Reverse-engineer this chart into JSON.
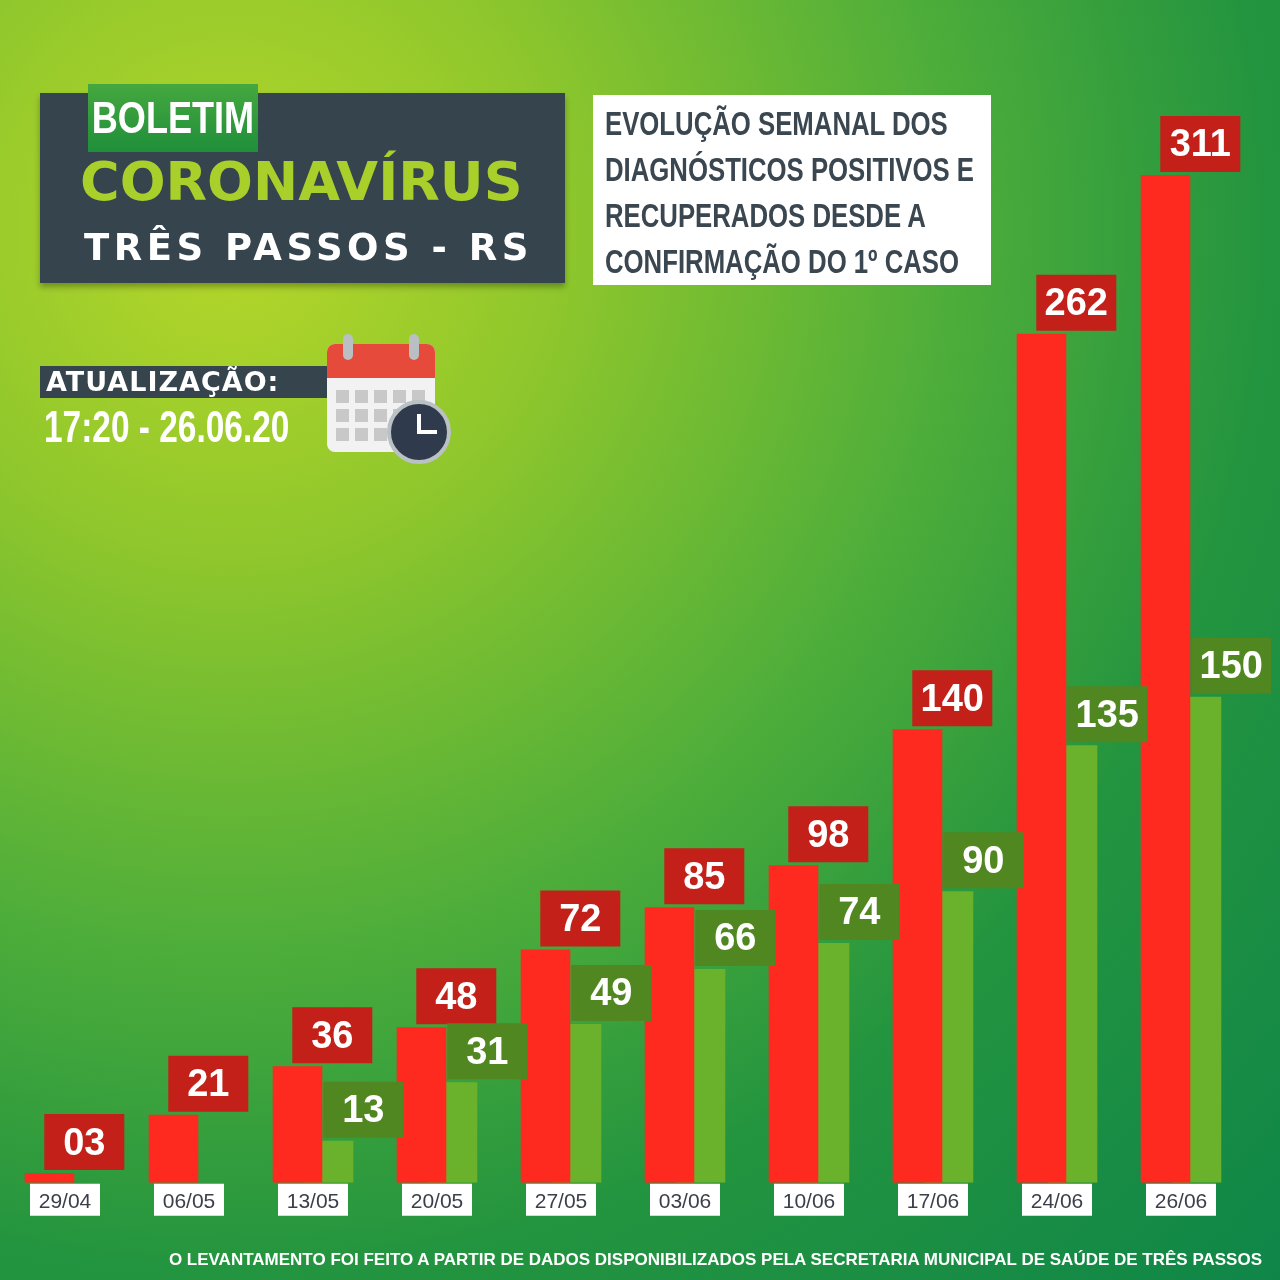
{
  "chart_data": {
    "type": "bar",
    "title": "EVOLUÇÃO SEMANAL DOS DIAGNÓSTICOS POSITIVOS E RECUPERADOS DESDE A CONFIRMAÇÃO DO 1º CASO",
    "categories": [
      "29/04",
      "06/05",
      "13/05",
      "20/05",
      "27/05",
      "03/06",
      "10/06",
      "17/06",
      "24/06",
      "26/06"
    ],
    "series": [
      {
        "color": "#ff2a1f",
        "values": [
          3,
          21,
          36,
          48,
          72,
          85,
          98,
          140,
          262,
          311
        ],
        "value_labels": [
          "03",
          "21",
          "36",
          "48",
          "72",
          "85",
          "98",
          "140",
          "262",
          "311"
        ]
      },
      {
        "color": "#6ab22b",
        "values": [
          null,
          null,
          13,
          31,
          49,
          66,
          74,
          90,
          135,
          150
        ],
        "value_labels": [
          null,
          null,
          "13",
          "31",
          "49",
          "66",
          "74",
          "90",
          "135",
          "150"
        ]
      }
    ],
    "annotations": [
      "BOLETIM",
      "CORONAVÍRUS",
      "TRÊS PASSOS - RS",
      "ATUALIZAÇÃO:",
      "17:20 - 26.06.20",
      "O LEVANTAMENTO FOI FEITO A PARTIR DE DADOS DISPONIBILIZADOS PELA SECRETARIA MUNICIPAL DE SAÚDE DE TRÊS PASSOS"
    ],
    "tick_labels": "x"
  }
}
